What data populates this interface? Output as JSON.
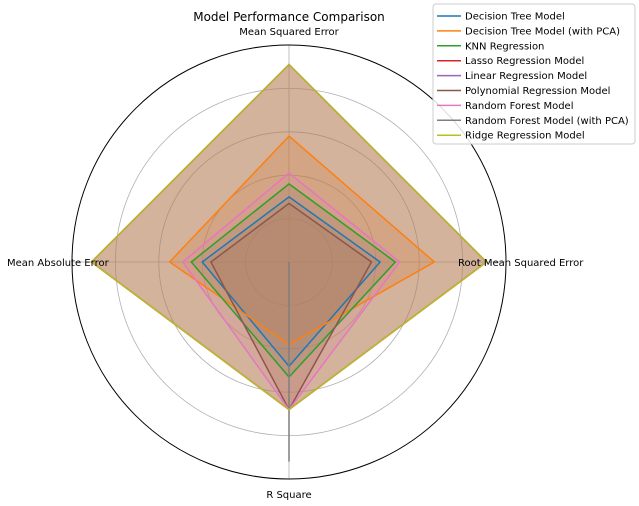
{
  "chart_data": {
    "type": "radar",
    "title": "Model Performance Comparison",
    "axes": [
      "Mean Squared Error",
      "Root Mean Squared Error",
      "R Square",
      "Mean Absolute Error"
    ],
    "rmax": 1.0,
    "grid": true,
    "legend_position": "top-right",
    "series": [
      {
        "name": "Decision Tree Model",
        "color": "#1f77b4",
        "values": [
          0.3,
          0.42,
          0.48,
          0.4
        ]
      },
      {
        "name": "Decision Tree Model (with PCA)",
        "color": "#ff7f0e",
        "values": [
          0.58,
          0.67,
          0.38,
          0.55
        ]
      },
      {
        "name": "KNN Regression",
        "color": "#2ca02c",
        "values": [
          0.36,
          0.49,
          0.53,
          0.45
        ]
      },
      {
        "name": "Lasso Regression Model",
        "color": "#d62728",
        "values": [
          0.91,
          0.91,
          0.68,
          0.91
        ]
      },
      {
        "name": "Linear Regression Model",
        "color": "#9467bd",
        "values": [
          0.91,
          0.91,
          0.68,
          0.91
        ]
      },
      {
        "name": "Polynomial Regression Model",
        "color": "#8c564b",
        "values": [
          0.27,
          0.38,
          0.68,
          0.36
        ]
      },
      {
        "name": "Random Forest Model",
        "color": "#e377c2",
        "values": [
          0.41,
          0.51,
          0.68,
          0.49
        ]
      },
      {
        "name": "Random Forest Model (with PCA)",
        "color": "#7f7f7f",
        "values": [
          0.0,
          0.0,
          0.92,
          0.0
        ]
      },
      {
        "name": "Ridge Regression Model",
        "color": "#bcbd22",
        "values": [
          0.91,
          0.91,
          0.68,
          0.91
        ]
      }
    ]
  }
}
